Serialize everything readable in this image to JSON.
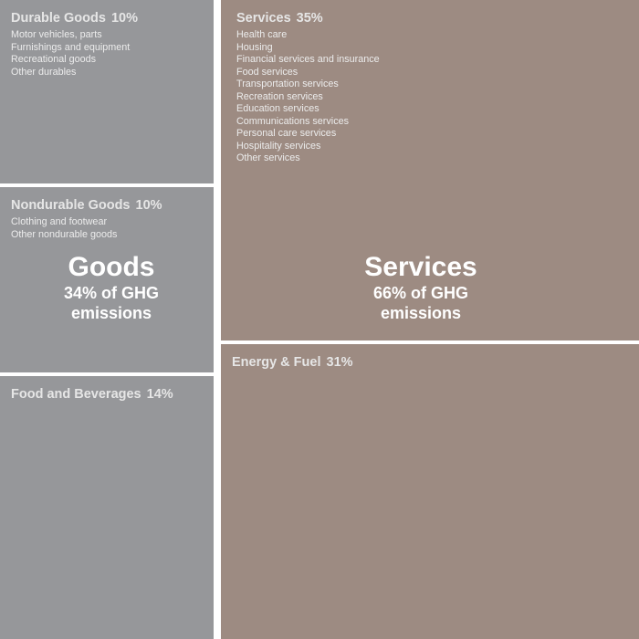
{
  "chart_data": {
    "type": "treemap",
    "groups": [
      {
        "name": "Goods",
        "share": 34,
        "label_line1": "34% of GHG",
        "label_line2": "emissions",
        "color": "#96979a",
        "categories": [
          {
            "name": "Durable Goods",
            "value": 10,
            "value_label": "10%",
            "items": [
              "Motor vehicles, parts",
              "Furnishings and equipment",
              "Recreational goods",
              "Other durables"
            ]
          },
          {
            "name": "Nondurable Goods",
            "value": 10,
            "value_label": "10%",
            "items": [
              "Clothing and footwear",
              "Other nondurable goods"
            ]
          },
          {
            "name": "Food and Beverages",
            "value": 14,
            "value_label": "14%",
            "items": []
          }
        ]
      },
      {
        "name": "Services",
        "share": 66,
        "label_line1": "66% of GHG",
        "label_line2": "emissions",
        "color": "#9d8b82",
        "categories": [
          {
            "name": "Services",
            "value": 35,
            "value_label": "35%",
            "items": [
              "Health care",
              "Housing",
              "Financial services and insurance",
              "Food services",
              "Transportation services",
              "Recreation services",
              "Education services",
              "Communications services",
              "Personal care services",
              "Hospitality services",
              "Other services"
            ]
          },
          {
            "name": "Energy & Fuel",
            "value": 31,
            "value_label": "31%",
            "items": []
          }
        ]
      }
    ]
  }
}
